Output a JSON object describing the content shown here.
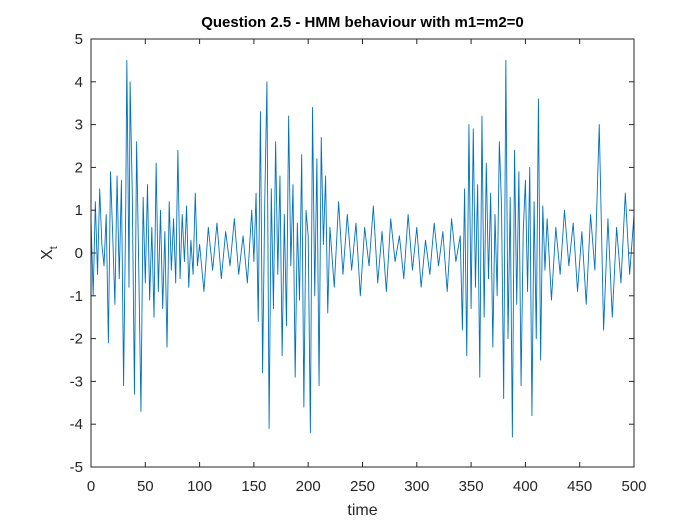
{
  "chart_data": {
    "type": "line",
    "title": "Question 2.5 - HMM behaviour with m1=m2=0",
    "xlabel": "time",
    "ylabel": {
      "base": "X",
      "subscript": "t"
    },
    "xlim": [
      0,
      500
    ],
    "ylim": [
      -5,
      5
    ],
    "xticks": [
      0,
      50,
      100,
      150,
      200,
      250,
      300,
      350,
      400,
      450,
      500
    ],
    "yticks": [
      -5,
      -4,
      -3,
      -2,
      -1,
      0,
      1,
      2,
      3,
      4,
      5
    ],
    "xtick_labels": [
      "0",
      "50",
      "100",
      "150",
      "200",
      "250",
      "300",
      "350",
      "400",
      "450",
      "500"
    ],
    "ytick_labels": [
      "-5",
      "-4",
      "-3",
      "-2",
      "-1",
      "0",
      "1",
      "2",
      "3",
      "4",
      "5"
    ],
    "grid": false,
    "legend": "none",
    "series_color": "#0072BD",
    "axes_color": "#262626",
    "series": [
      {
        "x": [
          0,
          2,
          4,
          6,
          8,
          10,
          12,
          14,
          16,
          18,
          20,
          22,
          24,
          26,
          28,
          30,
          32,
          33,
          34,
          35,
          36,
          38,
          40,
          42,
          44,
          46,
          48,
          50,
          52,
          54,
          56,
          58,
          60,
          62,
          64,
          66,
          68,
          70,
          72,
          74,
          76,
          78,
          80,
          82,
          84,
          86,
          88,
          90,
          92,
          94,
          96,
          98,
          100,
          104,
          108,
          112,
          116,
          120,
          124,
          128,
          132,
          136,
          140,
          144,
          148,
          150,
          152,
          154,
          156,
          158,
          160,
          162,
          164,
          166,
          168,
          170,
          172,
          174,
          176,
          178,
          180,
          182,
          184,
          186,
          188,
          190,
          192,
          194,
          196,
          198,
          200,
          202,
          204,
          206,
          208,
          210,
          212,
          214,
          216,
          218,
          220,
          224,
          228,
          232,
          236,
          240,
          244,
          248,
          252,
          256,
          260,
          264,
          268,
          272,
          276,
          280,
          284,
          288,
          292,
          296,
          300,
          304,
          308,
          312,
          316,
          320,
          324,
          328,
          332,
          336,
          340,
          342,
          344,
          346,
          348,
          350,
          352,
          354,
          356,
          358,
          360,
          362,
          364,
          366,
          368,
          370,
          372,
          374,
          376,
          378,
          380,
          382,
          384,
          386,
          388,
          390,
          392,
          394,
          396,
          398,
          400,
          402,
          404,
          406,
          408,
          410,
          412,
          414,
          416,
          418,
          420,
          424,
          428,
          432,
          436,
          440,
          444,
          448,
          452,
          456,
          460,
          464,
          468,
          472,
          476,
          480,
          484,
          488,
          492,
          496,
          500
        ],
        "y": [
          0.8,
          -1.0,
          1.2,
          -0.5,
          1.5,
          0.2,
          -0.3,
          0.9,
          -2.1,
          1.9,
          0.4,
          -1.2,
          1.8,
          -0.6,
          1.7,
          -3.1,
          1.1,
          4.5,
          2.0,
          -0.8,
          4.0,
          1.4,
          -3.3,
          2.6,
          -0.4,
          -3.7,
          1.3,
          -0.7,
          1.6,
          -1.1,
          0.6,
          -1.5,
          2.1,
          -0.9,
          1.0,
          -1.3,
          0.5,
          -2.2,
          1.2,
          -0.4,
          0.8,
          -0.7,
          2.4,
          -0.6,
          0.9,
          -0.2,
          1.1,
          -0.8,
          0.3,
          -0.5,
          1.4,
          -0.3,
          0.2,
          -0.9,
          0.6,
          -0.4,
          0.7,
          -0.6,
          0.5,
          -0.3,
          0.8,
          -0.5,
          0.4,
          -0.7,
          1.0,
          -0.2,
          1.4,
          -1.6,
          3.3,
          -2.8,
          1.2,
          4.0,
          -4.1,
          1.5,
          -1.3,
          2.6,
          -0.5,
          1.8,
          -2.4,
          0.9,
          -1.7,
          3.2,
          -0.3,
          1.6,
          -2.9,
          0.7,
          -1.1,
          2.3,
          -3.6,
          1.0,
          0.4,
          -4.2,
          3.4,
          -1.0,
          2.2,
          -3.1,
          2.7,
          0.2,
          1.8,
          -1.4,
          0.6,
          -0.8,
          1.2,
          -0.5,
          0.9,
          -0.4,
          0.7,
          -1.0,
          0.6,
          -0.3,
          1.1,
          -0.7,
          0.5,
          -0.9,
          0.8,
          -0.2,
          0.4,
          -0.6,
          0.9,
          -0.4,
          0.6,
          -0.8,
          0.3,
          -0.5,
          0.7,
          -0.3,
          0.5,
          -0.9,
          0.8,
          -0.2,
          0.4,
          -1.8,
          1.5,
          -2.4,
          3.0,
          -1.3,
          2.9,
          -0.8,
          1.6,
          -2.9,
          3.2,
          -1.5,
          2.1,
          -0.6,
          1.4,
          -2.2,
          0.9,
          -1.0,
          2.6,
          1.1,
          -3.4,
          4.5,
          -2.0,
          1.3,
          -4.3,
          2.4,
          -1.2,
          1.9,
          -3.1,
          0.5,
          1.7,
          -0.9,
          2.0,
          -3.8,
          1.2,
          -2.0,
          3.6,
          -2.5,
          1.1,
          -0.4,
          0.8,
          -1.1,
          0.6,
          -0.5,
          1.0,
          -0.3,
          0.7,
          -0.9,
          0.5,
          -1.2,
          0.9,
          -0.4,
          3.0,
          -1.8,
          0.8,
          -1.5,
          0.6,
          -0.7,
          1.4,
          -0.5,
          0.9
        ]
      }
    ]
  }
}
